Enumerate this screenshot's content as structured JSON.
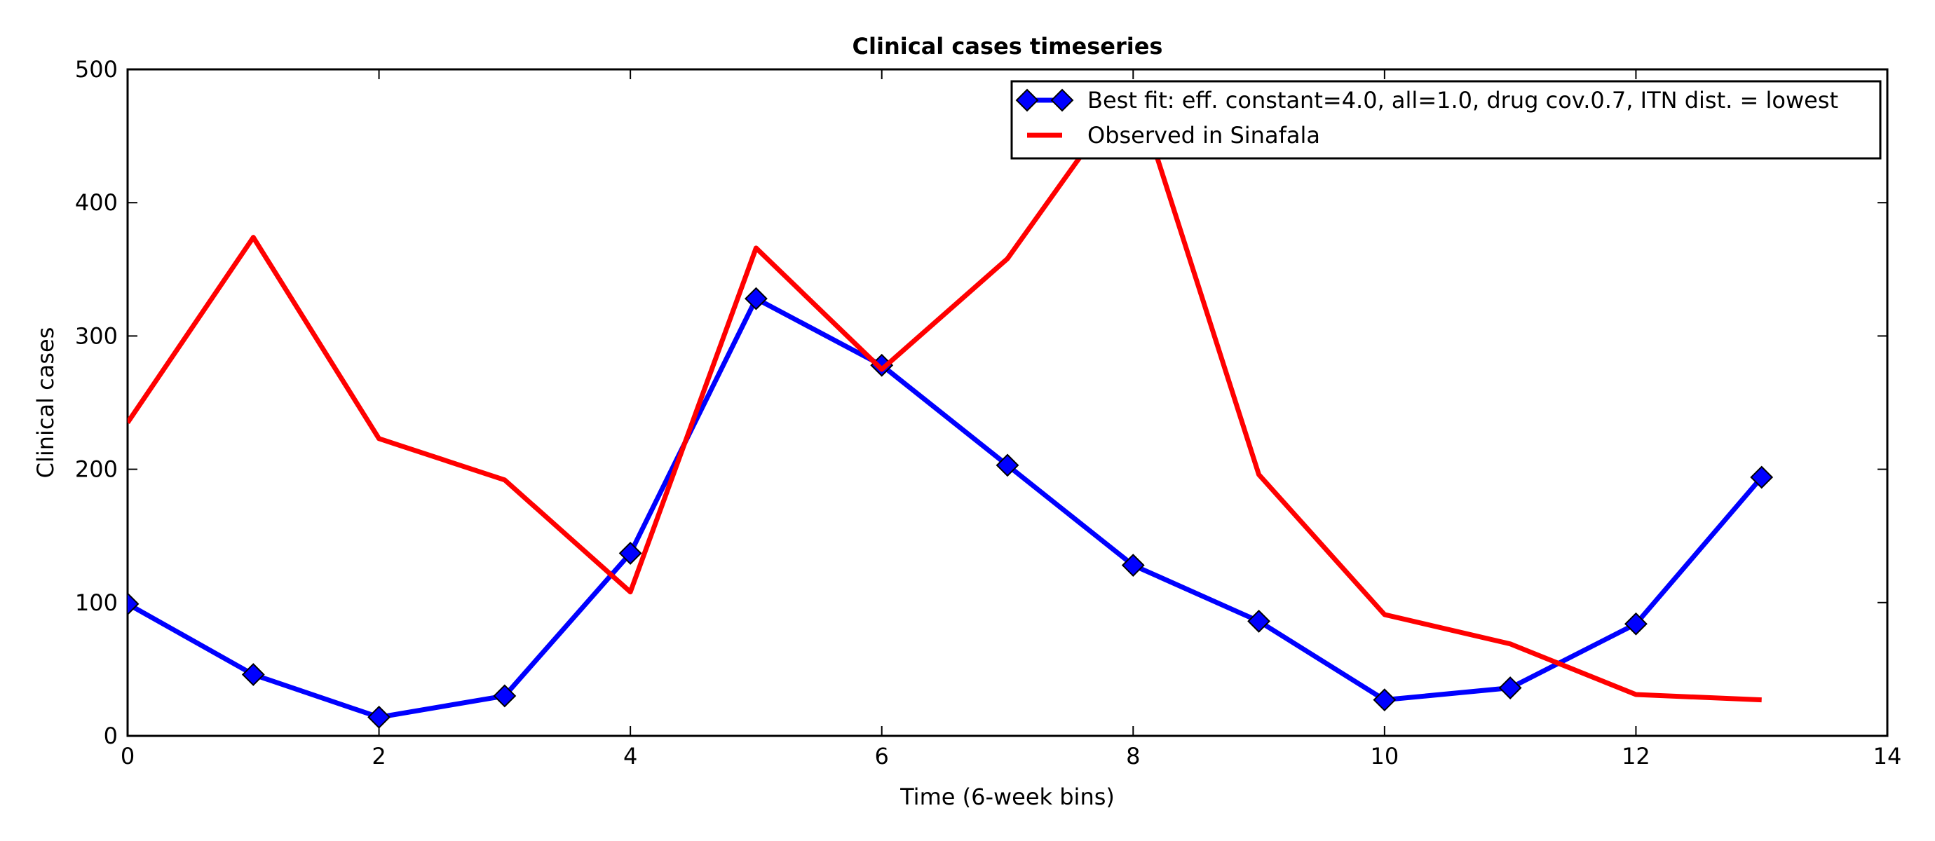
{
  "chart_data": {
    "type": "line",
    "title": "Clinical cases timeseries",
    "xlabel": "Time (6-week bins)",
    "ylabel": "Clinical cases",
    "xlim": [
      0,
      14
    ],
    "ylim": [
      0,
      500
    ],
    "xticks": [
      0,
      2,
      4,
      6,
      8,
      10,
      12,
      14
    ],
    "yticks": [
      0,
      100,
      200,
      300,
      400,
      500
    ],
    "grid": false,
    "legend_position": "top-right",
    "series": [
      {
        "name": "Best fit: eff. constant=4.0, all=1.0, drug cov.0.7, ITN dist. = lowest",
        "color": "#0000ff",
        "marker": "diamond",
        "x": [
          0,
          1,
          2,
          3,
          4,
          5,
          6,
          7,
          8,
          9,
          10,
          11,
          12,
          13
        ],
        "y": [
          99,
          46,
          14,
          30,
          137,
          328,
          278,
          203,
          128,
          86,
          27,
          36,
          84,
          194
        ]
      },
      {
        "name": "Observed in Sinafala",
        "color": "#ff0000",
        "marker": "none",
        "x": [
          0,
          1,
          2,
          3,
          4,
          5,
          6,
          7,
          8,
          9,
          10,
          11,
          12,
          13
        ],
        "y": [
          235,
          374,
          223,
          192,
          108,
          366,
          275,
          358,
          490,
          196,
          91,
          69,
          31,
          27
        ]
      }
    ]
  }
}
